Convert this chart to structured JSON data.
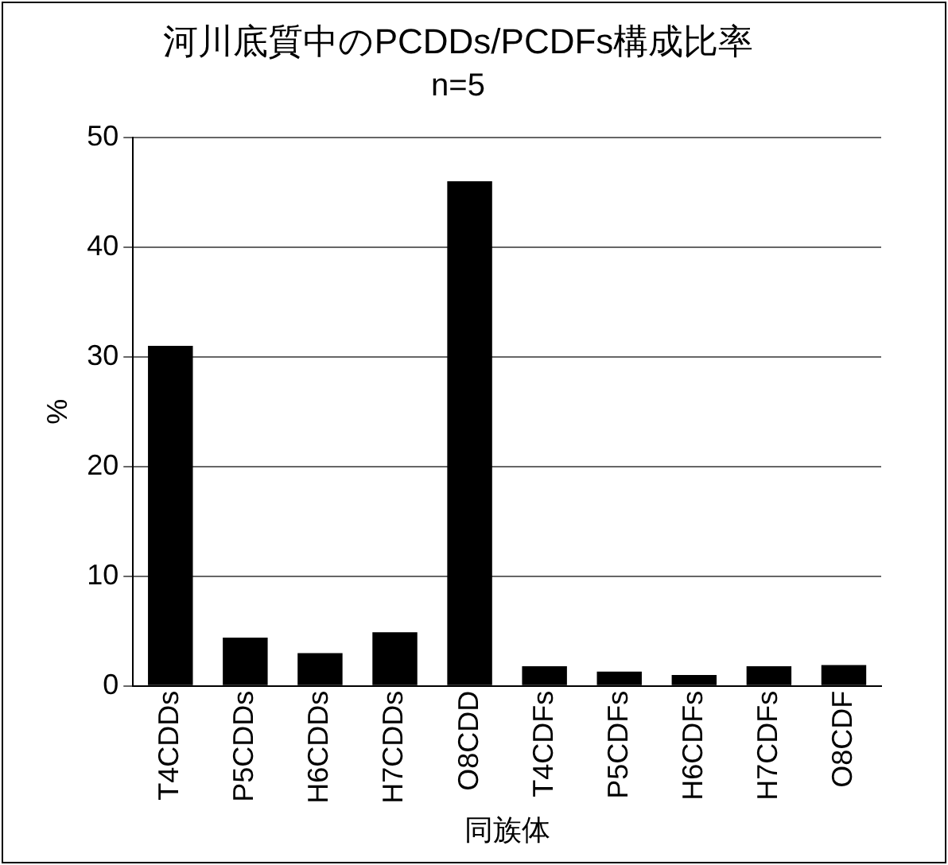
{
  "chart_data": {
    "type": "bar",
    "title": "河川底質中のPCDDs/PCDFs構成比率",
    "subtitle": "n=5",
    "xlabel": "同族体",
    "ylabel": "%",
    "categories": [
      "T4CDDs",
      "P5CDDs",
      "H6CDDs",
      "H7CDDs",
      "O8CDD",
      "T4CDFs",
      "P5CDFs",
      "H6CDFs",
      "H7CDFs",
      "O8CDF"
    ],
    "values": [
      31,
      4.4,
      3,
      4.9,
      46,
      1.8,
      1.3,
      1,
      1.8,
      1.9
    ],
    "color": "#000000",
    "ylim": [
      0,
      50
    ],
    "yticks": [
      0,
      10,
      20,
      30,
      40,
      50
    ],
    "grid": "y",
    "legend": false
  }
}
